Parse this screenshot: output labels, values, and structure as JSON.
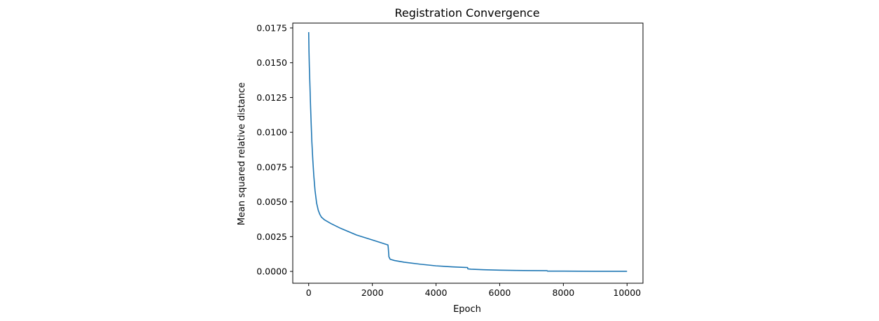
{
  "chart_data": {
    "type": "line",
    "title": "Registration Convergence",
    "xlabel": "Epoch",
    "ylabel": "Mean squared relative distance",
    "xlim": [
      -500,
      10500
    ],
    "ylim": [
      -0.00085,
      0.01785
    ],
    "x_ticks": [
      0,
      2000,
      4000,
      6000,
      8000,
      10000
    ],
    "x_tick_labels": [
      "0",
      "2000",
      "4000",
      "6000",
      "8000",
      "10000"
    ],
    "y_ticks": [
      0.0,
      0.0025,
      0.005,
      0.0075,
      0.01,
      0.0125,
      0.015,
      0.0175
    ],
    "y_tick_labels": [
      "0.0000",
      "0.0025",
      "0.0050",
      "0.0075",
      "0.0100",
      "0.0125",
      "0.0150",
      "0.0175"
    ],
    "grid": false,
    "series": [
      {
        "color": "#1f77b4",
        "points": [
          [
            0,
            0.0172
          ],
          [
            10,
            0.0158
          ],
          [
            20,
            0.0148
          ],
          [
            40,
            0.0133
          ],
          [
            60,
            0.0118
          ],
          [
            80,
            0.0105
          ],
          [
            100,
            0.0093
          ],
          [
            130,
            0.008
          ],
          [
            160,
            0.0069
          ],
          [
            200,
            0.0058
          ],
          [
            250,
            0.0049
          ],
          [
            300,
            0.0044
          ],
          [
            350,
            0.0041
          ],
          [
            400,
            0.0039
          ],
          [
            500,
            0.0037
          ],
          [
            700,
            0.00344
          ],
          [
            1000,
            0.0031
          ],
          [
            1500,
            0.00262
          ],
          [
            2000,
            0.00226
          ],
          [
            2490,
            0.0019
          ],
          [
            2500,
            0.0017
          ],
          [
            2520,
            0.00105
          ],
          [
            2560,
            0.00087
          ],
          [
            2700,
            0.00078
          ],
          [
            3000,
            0.00066
          ],
          [
            3500,
            0.00052
          ],
          [
            4000,
            0.0004
          ],
          [
            4500,
            0.00033
          ],
          [
            4990,
            0.00028
          ],
          [
            5000,
            0.00018
          ],
          [
            5100,
            0.00016
          ],
          [
            5500,
            0.00012
          ],
          [
            6000,
            9e-05
          ],
          [
            6500,
            7e-05
          ],
          [
            7000,
            6e-05
          ],
          [
            7490,
            5e-05
          ],
          [
            7500,
            2e-05
          ],
          [
            8000,
            2e-05
          ],
          [
            9000,
            1e-05
          ],
          [
            10000,
            1e-05
          ]
        ]
      }
    ]
  }
}
